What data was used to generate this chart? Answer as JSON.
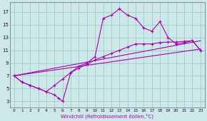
{
  "bg_color": "#cce8e8",
  "grid_color": "#aacccc",
  "line_color": "#aa00aa",
  "xlabel": "Windchill (Refroidissement éolien,°C)",
  "xlim": [
    -0.5,
    23.5
  ],
  "ylim": [
    2,
    18.5
  ],
  "xticks": [
    0,
    1,
    2,
    3,
    4,
    5,
    6,
    7,
    8,
    9,
    10,
    11,
    12,
    13,
    14,
    15,
    16,
    17,
    18,
    19,
    20,
    21,
    22,
    23
  ],
  "yticks": [
    3,
    5,
    7,
    9,
    11,
    13,
    15,
    17
  ],
  "main_x": [
    0,
    1,
    2,
    3,
    4,
    5,
    5.5,
    6,
    7,
    8,
    9,
    10,
    11,
    12,
    13,
    14,
    15,
    16,
    17,
    18,
    19,
    20,
    21,
    22,
    23
  ],
  "main_y": [
    7,
    6,
    5.5,
    5,
    4.5,
    4,
    3.5,
    3,
    7.5,
    8.5,
    9,
    10,
    16,
    16.5,
    17.5,
    16.5,
    16,
    14.5,
    14,
    15.5,
    13,
    12,
    12.2,
    12.5,
    11
  ],
  "smooth_x": [
    0,
    1,
    2,
    3,
    4,
    5,
    6,
    7,
    8,
    9,
    10,
    11,
    12,
    13,
    14,
    15,
    16,
    17,
    18,
    19,
    20,
    21,
    22,
    23
  ],
  "smooth_y": [
    7,
    6,
    5.5,
    5,
    4.5,
    5.5,
    6.5,
    7.5,
    8.2,
    8.8,
    9.5,
    10,
    10.5,
    11,
    11.5,
    12,
    12,
    12,
    12.2,
    12.3,
    12.3,
    12.4,
    12.5,
    11
  ],
  "line1_x": [
    0,
    23
  ],
  "line1_y": [
    7,
    12.5
  ],
  "line2_x": [
    0,
    23
  ],
  "line2_y": [
    7,
    11.2
  ]
}
